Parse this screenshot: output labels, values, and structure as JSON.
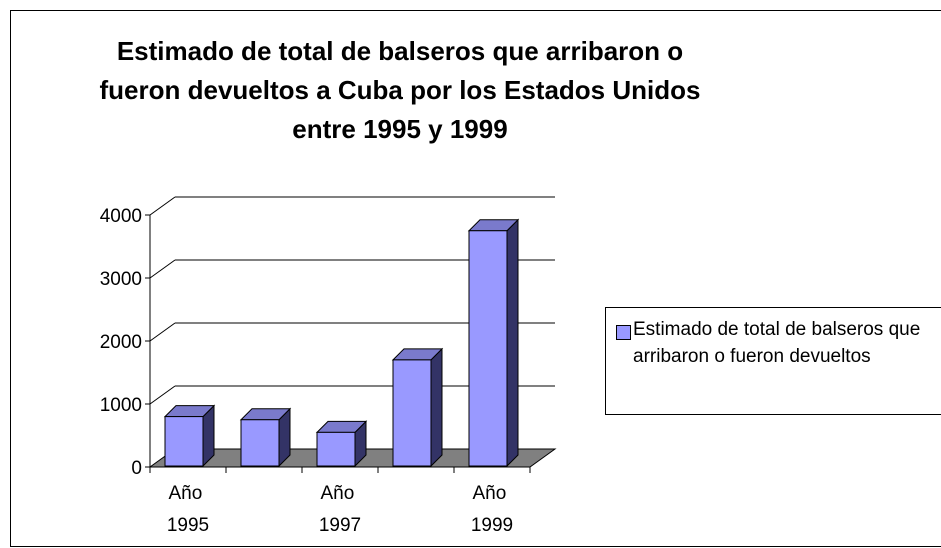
{
  "chart_data": {
    "type": "bar3d",
    "title": "Estimado de total de balseros que arribaron o fueron devueltos a Cuba por los Estados Unidos entre 1995 y 1999",
    "categories": [
      "Año 1995",
      null,
      "Año 1997",
      null,
      "Año 1999"
    ],
    "series": [
      {
        "name": "Estimado de total de balseros que arribaron o fueron devueltos",
        "color": "#9999ff",
        "values": [
          800,
          750,
          550,
          1700,
          3750
        ]
      }
    ],
    "ylim": [
      0,
      4000
    ],
    "yticks": [
      0,
      1000,
      2000,
      3000,
      4000
    ],
    "grid": true,
    "legend": "right"
  }
}
